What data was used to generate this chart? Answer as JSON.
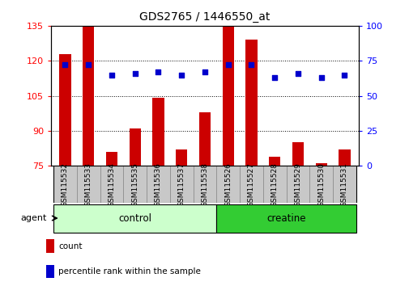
{
  "title": "GDS2765 / 1446550_at",
  "samples": [
    "GSM115532",
    "GSM115533",
    "GSM115534",
    "GSM115535",
    "GSM115536",
    "GSM115537",
    "GSM115538",
    "GSM115526",
    "GSM115527",
    "GSM115528",
    "GSM115529",
    "GSM115530",
    "GSM115531"
  ],
  "count_values": [
    123,
    135,
    81,
    91,
    104,
    82,
    98,
    136,
    129,
    79,
    85,
    76,
    82
  ],
  "percentile_values": [
    72,
    72,
    65,
    66,
    67,
    65,
    67,
    72,
    72,
    63,
    66,
    63,
    65
  ],
  "bar_base": 75,
  "ylim_left": [
    75,
    135
  ],
  "ylim_right": [
    0,
    100
  ],
  "yticks_left": [
    75,
    90,
    105,
    120,
    135
  ],
  "yticks_right": [
    0,
    25,
    50,
    75,
    100
  ],
  "bar_color": "#cc0000",
  "dot_color": "#0000cc",
  "groups": [
    {
      "label": "control",
      "start": 0,
      "end": 6,
      "color": "#ccffcc"
    },
    {
      "label": "creatine",
      "start": 7,
      "end": 12,
      "color": "#33cc33"
    }
  ],
  "agent_label": "agent",
  "legend_count_label": "count",
  "legend_percentile_label": "percentile rank within the sample",
  "background_color": "#ffffff",
  "tick_label_bg": "#c8c8c8",
  "tick_label_edge": "#888888",
  "title_fontsize": 10,
  "bar_width": 0.5
}
